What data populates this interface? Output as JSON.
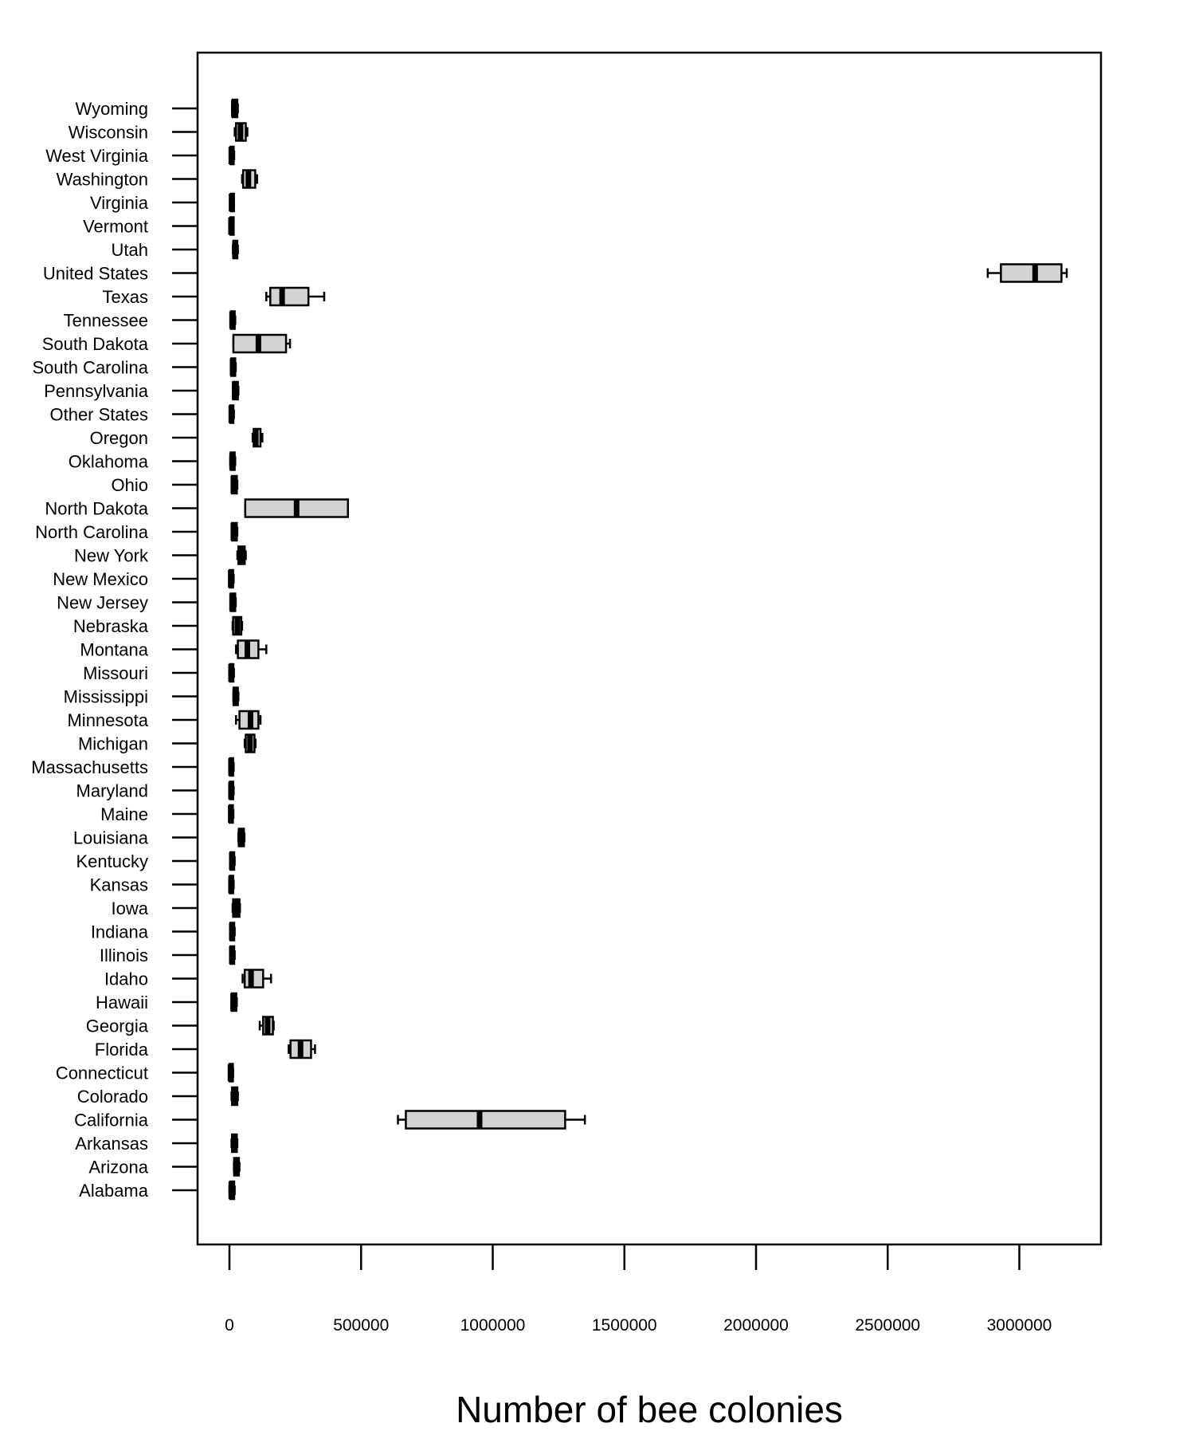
{
  "chart_data": {
    "type": "boxplot",
    "orientation": "horizontal",
    "xlabel": "Number of bee colonies",
    "ylabel": "",
    "title": "",
    "xlim": [
      -120000,
      3300000
    ],
    "xticks": [
      0,
      500000,
      1000000,
      1500000,
      2000000,
      2500000,
      3000000
    ],
    "xtick_labels": [
      "0",
      "500000",
      "1000000",
      "1500000",
      "2000000",
      "2500000",
      "3000000"
    ],
    "grid": false,
    "box_fill": "#d3d3d3",
    "line_color": "#000000",
    "series": [
      {
        "category": "Wyoming",
        "min": 10000,
        "q1": 12000,
        "median": 17000,
        "q3": 30000,
        "max": 32000
      },
      {
        "category": "Wisconsin",
        "min": 20000,
        "q1": 25000,
        "median": 42000,
        "q3": 62000,
        "max": 68000
      },
      {
        "category": "West Virginia",
        "min": 2000,
        "q1": 4000,
        "median": 7000,
        "q3": 15000,
        "max": 18000
      },
      {
        "category": "Washington",
        "min": 48000,
        "q1": 52000,
        "median": 72000,
        "q3": 98000,
        "max": 105000
      },
      {
        "category": "Virginia",
        "min": 3000,
        "q1": 5000,
        "median": 8000,
        "q3": 14000,
        "max": 17000
      },
      {
        "category": "Vermont",
        "min": 3000,
        "q1": 4000,
        "median": 6000,
        "q3": 12000,
        "max": 15000
      },
      {
        "category": "Utah",
        "min": 13000,
        "q1": 15000,
        "median": 21000,
        "q3": 30000,
        "max": 32000
      },
      {
        "category": "United States",
        "min": 2880000,
        "q1": 2930000,
        "median": 3060000,
        "q3": 3160000,
        "max": 3180000
      },
      {
        "category": "Texas",
        "min": 140000,
        "q1": 155000,
        "median": 200000,
        "q3": 300000,
        "max": 360000
      },
      {
        "category": "Tennessee",
        "min": 5000,
        "q1": 6000,
        "median": 10000,
        "q3": 20000,
        "max": 22000
      },
      {
        "category": "South Dakota",
        "min": 15000,
        "q1": 15000,
        "median": 110000,
        "q3": 215000,
        "max": 230000
      },
      {
        "category": "South Carolina",
        "min": 6000,
        "q1": 7000,
        "median": 12000,
        "q3": 22000,
        "max": 24000
      },
      {
        "category": "Pennsylvania",
        "min": 13000,
        "q1": 14000,
        "median": 20000,
        "q3": 32000,
        "max": 34000
      },
      {
        "category": "Other States",
        "min": 2000,
        "q1": 3000,
        "median": 7000,
        "q3": 15000,
        "max": 17000
      },
      {
        "category": "Oregon",
        "min": 88000,
        "q1": 92000,
        "median": 100000,
        "q3": 118000,
        "max": 125000
      },
      {
        "category": "Oklahoma",
        "min": 3000,
        "q1": 5000,
        "median": 10000,
        "q3": 20000,
        "max": 22000
      },
      {
        "category": "Ohio",
        "min": 9000,
        "q1": 10000,
        "median": 15000,
        "q3": 28000,
        "max": 30000
      },
      {
        "category": "North Dakota",
        "min": 60000,
        "q1": 60000,
        "median": 255000,
        "q3": 450000,
        "max": 450000
      },
      {
        "category": "North Carolina",
        "min": 9000,
        "q1": 10000,
        "median": 15000,
        "q3": 28000,
        "max": 30000
      },
      {
        "category": "New York",
        "min": 30000,
        "q1": 34000,
        "median": 45000,
        "q3": 58000,
        "max": 62000
      },
      {
        "category": "New Mexico",
        "min": 0,
        "q1": 1000,
        "median": 5000,
        "q3": 14000,
        "max": 16000
      },
      {
        "category": "New Jersey",
        "min": 4000,
        "q1": 5000,
        "median": 10000,
        "q3": 22000,
        "max": 24000
      },
      {
        "category": "Nebraska",
        "min": 12000,
        "q1": 14000,
        "median": 30000,
        "q3": 45000,
        "max": 48000
      },
      {
        "category": "Montana",
        "min": 25000,
        "q1": 32000,
        "median": 68000,
        "q3": 110000,
        "max": 140000
      },
      {
        "category": "Missouri",
        "min": 0,
        "q1": 2000,
        "median": 6000,
        "q3": 15000,
        "max": 17000
      },
      {
        "category": "Mississippi",
        "min": 15000,
        "q1": 16000,
        "median": 22000,
        "q3": 32000,
        "max": 34000
      },
      {
        "category": "Minnesota",
        "min": 25000,
        "q1": 38000,
        "median": 80000,
        "q3": 110000,
        "max": 118000
      },
      {
        "category": "Michigan",
        "min": 58000,
        "q1": 62000,
        "median": 78000,
        "q3": 95000,
        "max": 99000
      },
      {
        "category": "Massachusetts",
        "min": 1000,
        "q1": 2000,
        "median": 6000,
        "q3": 14000,
        "max": 16000
      },
      {
        "category": "Maryland",
        "min": 1000,
        "q1": 2000,
        "median": 6000,
        "q3": 14000,
        "max": 16000
      },
      {
        "category": "Maine",
        "min": 0,
        "q1": 1000,
        "median": 5000,
        "q3": 13000,
        "max": 15000
      },
      {
        "category": "Louisiana",
        "min": 34000,
        "q1": 36000,
        "median": 42000,
        "q3": 55000,
        "max": 57000
      },
      {
        "category": "Kentucky",
        "min": 3000,
        "q1": 4000,
        "median": 9000,
        "q3": 18000,
        "max": 20000
      },
      {
        "category": "Kansas",
        "min": 1000,
        "q1": 2000,
        "median": 6000,
        "q3": 14000,
        "max": 16000
      },
      {
        "category": "Iowa",
        "min": 12000,
        "q1": 14000,
        "median": 26000,
        "q3": 38000,
        "max": 40000
      },
      {
        "category": "Indiana",
        "min": 3000,
        "q1": 4000,
        "median": 9000,
        "q3": 18000,
        "max": 20000
      },
      {
        "category": "Illinois",
        "min": 3000,
        "q1": 4000,
        "median": 9000,
        "q3": 18000,
        "max": 20000
      },
      {
        "category": "Idaho",
        "min": 50000,
        "q1": 58000,
        "median": 82000,
        "q3": 128000,
        "max": 158000
      },
      {
        "category": "Hawaii",
        "min": 8000,
        "q1": 9000,
        "median": 14000,
        "q3": 26000,
        "max": 28000
      },
      {
        "category": "Georgia",
        "min": 115000,
        "q1": 128000,
        "median": 145000,
        "q3": 165000,
        "max": 168000
      },
      {
        "category": "Florida",
        "min": 225000,
        "q1": 232000,
        "median": 270000,
        "q3": 310000,
        "max": 325000
      },
      {
        "category": "Connecticut",
        "min": 0,
        "q1": 1000,
        "median": 4000,
        "q3": 12000,
        "max": 14000
      },
      {
        "category": "Colorado",
        "min": 8000,
        "q1": 10000,
        "median": 18000,
        "q3": 30000,
        "max": 32000
      },
      {
        "category": "California",
        "min": 640000,
        "q1": 670000,
        "median": 950000,
        "q3": 1275000,
        "max": 1350000
      },
      {
        "category": "Arkansas",
        "min": 8000,
        "q1": 10000,
        "median": 17000,
        "q3": 28000,
        "max": 30000
      },
      {
        "category": "Arizona",
        "min": 17000,
        "q1": 18000,
        "median": 25000,
        "q3": 36000,
        "max": 38000
      },
      {
        "category": "Alabama",
        "min": 0,
        "q1": 3000,
        "median": 7000,
        "q3": 18000,
        "max": 20000
      }
    ]
  }
}
